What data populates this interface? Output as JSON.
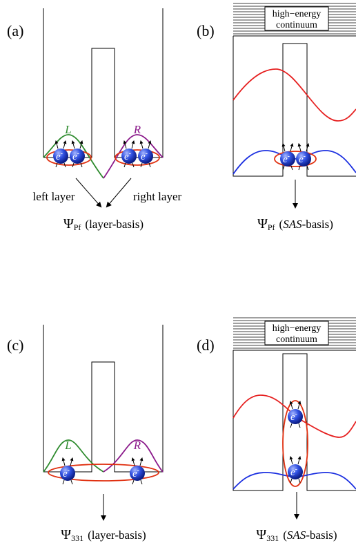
{
  "panels": [
    {
      "label": "(a)",
      "well_labels": [
        "L",
        "R"
      ],
      "arrow_labels": [
        "left layer",
        "right layer"
      ],
      "caption": {
        "psi": "Ψ",
        "sub": "Pf",
        "text": "(layer-basis)"
      }
    },
    {
      "label": "(b)",
      "continuum": [
        "high−energy",
        "continuum"
      ],
      "caption": {
        "psi": "Ψ",
        "sub": "Pf",
        "pre": "(",
        "em": "SAS",
        "post": "-basis)"
      }
    },
    {
      "label": "(c)",
      "well_labels": [
        "L",
        "R"
      ],
      "caption": {
        "psi": "Ψ",
        "sub": "331",
        "text": "(layer-basis)"
      }
    },
    {
      "label": "(d)",
      "continuum": [
        "high−energy",
        "continuum"
      ],
      "caption": {
        "psi": "Ψ",
        "sub": "331",
        "pre": "(",
        "em": "SAS",
        "post": "-basis)"
      }
    }
  ],
  "electron": {
    "symbol": "e",
    "charge": "-"
  }
}
